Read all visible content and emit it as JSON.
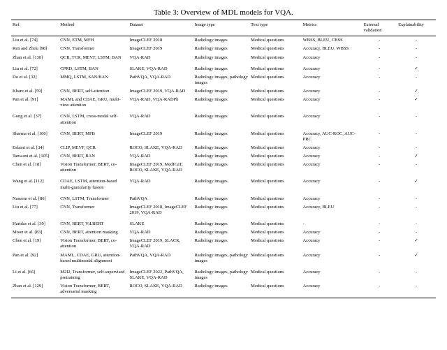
{
  "caption": "Table 3: Overview of MDL models for VQA.",
  "headers": {
    "ref": "Ref.",
    "method": "Method",
    "dataset": "Dataset",
    "imgtype": "Image type",
    "texttype": "Text type",
    "metrics": "Metrics",
    "extval": "External validation",
    "expl": "Explainability"
  },
  "marks": {
    "yes": "✓",
    "no": "-"
  },
  "rows": [
    {
      "ref": "Liu et al. [74]",
      "method": "CNN, ETM, MFH",
      "dataset": "ImageCLEF 2018",
      "img": "Radiology images",
      "text": "Medical questions",
      "metrics": "WBSS, BLEU, CBSS",
      "ext": "-",
      "expl": "-",
      "sep": false
    },
    {
      "ref": "Ren and Zhou [98]",
      "method": "CNN, Transformer",
      "dataset": "ImageCLEF 2019",
      "img": "Radiology images",
      "text": "Medical questions",
      "metrics": "Accuracy, BLEU, WBSS",
      "ext": "-",
      "expl": "-",
      "sep": false
    },
    {
      "ref": "Zhan et al. [130]",
      "method": "QCR, TCR, MEVF, LSTM, BAN",
      "dataset": "VQA-RAD",
      "img": "Radiology images",
      "text": "Medical questions",
      "metrics": "Accuracy",
      "ext": "-",
      "expl": "-",
      "sep": false
    },
    {
      "ref": "Liu et al. [72]",
      "method": "CPRD, LSTM, BAN",
      "dataset": "SLAKE, VQA-RAD",
      "img": "Radiology images",
      "text": "Medical questions",
      "metrics": "Accuracy",
      "ext": "-",
      "expl": "✓",
      "sep": true
    },
    {
      "ref": "Do et al. [32]",
      "method": "MMQ, LSTM, SAN/BAN",
      "dataset": "PathVQA, VQA-RAD",
      "img": "Radiology images, pathology images",
      "text": "Medical questions",
      "metrics": "Accuracy",
      "ext": "-",
      "expl": "-",
      "sep": false
    },
    {
      "ref": "Khare et al. [59]",
      "method": "CNN, BERT, self-attention",
      "dataset": "ImageCLEF 2019, VQA-RAD",
      "img": "Radiology images",
      "text": "Medical questions",
      "metrics": "Accuracy",
      "ext": "-",
      "expl": "✓",
      "sep": false
    },
    {
      "ref": "Pan et al. [91]",
      "method": "MAML and CDAE, GRU, multi-view attention",
      "dataset": "VQA-RAD, VQA-RADPh",
      "img": "Radiology images",
      "text": "Medical questions",
      "metrics": "Accuracy",
      "ext": "-",
      "expl": "✓",
      "sep": false
    },
    {
      "ref": "Gong et al. [37]",
      "method": "CNN, LSTM, cross-modal self-attention",
      "dataset": "VQA-RAD",
      "img": "Radiology images",
      "text": "Medical questions",
      "metrics": "Accuracy",
      "ext": "-",
      "expl": "-",
      "sep": true
    },
    {
      "ref": "Sharma et al. [100]",
      "method": "CNN, BERT, MFB",
      "dataset": "ImageCLEF 2019",
      "img": "Radiology images",
      "text": "Medical questions",
      "metrics": "Accuracy, AUC-ROC, AUC-PRC",
      "ext": "-",
      "expl": "-",
      "sep": true
    },
    {
      "ref": "Eslami et al. [34]",
      "method": "CLIP, MEVF, QCR",
      "dataset": "ROCO, SLAKE, VQA-RAD",
      "img": "Radiology images",
      "text": "Medical questions",
      "metrics": "Accuracy",
      "ext": "-",
      "expl": "-",
      "sep": false
    },
    {
      "ref": "Tanwani et al. [105]",
      "method": "CNN, BERT, BAN",
      "dataset": "VQA-RAD",
      "img": "Radiology images",
      "text": "Medical questions",
      "metrics": "Accuracy",
      "ext": "-",
      "expl": "✓",
      "sep": false
    },
    {
      "ref": "Chen et al. [18]",
      "method": "Vision Transformer, BERT, co-attention",
      "dataset": "ImageCLEF 2019, MedICaT, ROCO, SLAKE, VQA-RAD",
      "img": "Radiology images",
      "text": "Medical questions",
      "metrics": "Accuracy",
      "ext": "-",
      "expl": "-",
      "sep": false
    },
    {
      "ref": "Wang et al. [112]",
      "method": "CDAE, LSTM, attention-based multi-granularity fusion",
      "dataset": "VQA-RAD",
      "img": "Radiology images",
      "text": "Medical questions",
      "metrics": "Accuracy",
      "ext": "-",
      "expl": "✓",
      "sep": true
    },
    {
      "ref": "Naseem et al. [86]",
      "method": "CNN, LSTM, Transformer",
      "dataset": "PathVQA",
      "img": "Radiology images",
      "text": "Medical questions",
      "metrics": "Accuracy",
      "ext": "-",
      "expl": "-",
      "sep": true
    },
    {
      "ref": "Liu et al. [77]",
      "method": "CNN, Transformer",
      "dataset": "ImageCLEF 2018, ImageCLEF 2019, VQA-RAD",
      "img": "Radiology images",
      "text": "Medical questions",
      "metrics": "Accuracy, BLEU",
      "ext": "-",
      "expl": "-",
      "sep": false
    },
    {
      "ref": "Haridas et al. [39]",
      "method": "CNN, BERT, ViLBERT",
      "dataset": "SLAKE",
      "img": "Radiology images",
      "text": "Medical questions",
      "metrics": "-",
      "ext": "-",
      "expl": "-",
      "sep": true
    },
    {
      "ref": "Moon et al. [83]",
      "method": "CNN, BERT, attention masking",
      "dataset": "VQA-RAD",
      "img": "Radiology images",
      "text": "Medical questions",
      "metrics": "Accuracy",
      "ext": "-",
      "expl": "-",
      "sep": false
    },
    {
      "ref": "Chen et al. [19]",
      "method": "Vision Transformer, BERT, co-attention",
      "dataset": "ImageCLEF 2019, SLACK, VQA-RAD",
      "img": "Radiology images",
      "text": "Medical questions",
      "metrics": "Accuracy",
      "ext": "-",
      "expl": "✓",
      "sep": false
    },
    {
      "ref": "Pan et al. [92]",
      "method": "MAML, CDAE, GRU, attention-based multimodal alignment",
      "dataset": "PathVQA, VQA-RAD",
      "img": "Radiology images, pathology images",
      "text": "Medical questions",
      "metrics": "Accuracy",
      "ext": "-",
      "expl": "✓",
      "sep": false
    },
    {
      "ref": "Li et al. [66]",
      "method": "M2I2, Transformer, self-supervised pretraining",
      "dataset": "ImageCLEF 2022, PathVQA, SLAKE, VQA-RAD",
      "img": "Radiology images, pathology images",
      "text": "Medical questions",
      "metrics": "Accuracy",
      "ext": "-",
      "expl": "-",
      "sep": true
    },
    {
      "ref": "Zhan et al. [129]",
      "method": "Vision Transformer, BERT, adversarial masking",
      "dataset": "ROCO, SLAKE, VQA-RAD",
      "img": "Radiology images",
      "text": "Medical questions",
      "metrics": "Accuracy",
      "ext": "-",
      "expl": "-",
      "sep": false
    }
  ]
}
